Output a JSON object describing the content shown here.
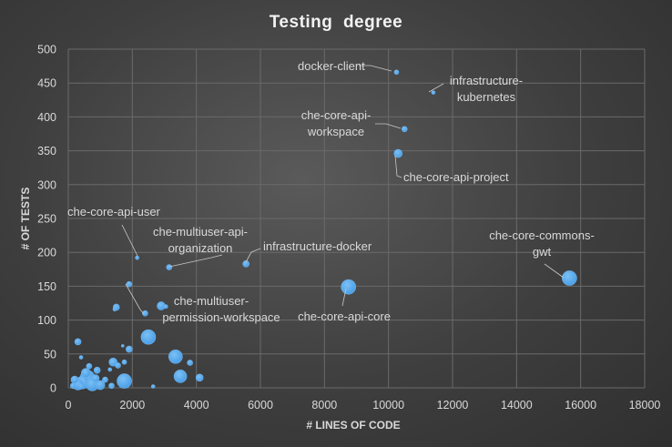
{
  "chart_data": {
    "type": "scatter",
    "title": "Testing  degree",
    "xlabel": "# LINES OF CODE",
    "ylabel": "# OF TESTS",
    "xlim": [
      0,
      18000
    ],
    "ylim": [
      0,
      500
    ],
    "x_ticks": [
      "0",
      "2000",
      "4000",
      "6000",
      "8000",
      "10000",
      "12000",
      "14000",
      "16000",
      "18000"
    ],
    "y_ticks": [
      "0",
      "50",
      "100",
      "150",
      "200",
      "250",
      "300",
      "350",
      "400",
      "450",
      "500"
    ],
    "grid": true,
    "legend": "none",
    "marker_color": "#4a9ee6",
    "points": [
      {
        "x": 10250,
        "y": 466,
        "r": 2.5,
        "label": "docker-client"
      },
      {
        "x": 11400,
        "y": 436,
        "r": 2,
        "label": "infrastructure-\nkubernetes"
      },
      {
        "x": 10500,
        "y": 382,
        "r": 3,
        "label": "che-core-api-\nworkspace"
      },
      {
        "x": 10300,
        "y": 346,
        "r": 4.5,
        "label": "che-core-api-project"
      },
      {
        "x": 2150,
        "y": 192,
        "r": 2,
        "label": "che-core-api-user"
      },
      {
        "x": 3150,
        "y": 178,
        "r": 3,
        "label": "che-multiuser-api-\norganization"
      },
      {
        "x": 5550,
        "y": 183,
        "r": 3.5,
        "label": "infrastructure-docker"
      },
      {
        "x": 15650,
        "y": 162,
        "r": 8,
        "label": "che-core-commons-\ngwt"
      },
      {
        "x": 8750,
        "y": 149,
        "r": 8,
        "label": "che-core-api-core"
      },
      {
        "x": 2400,
        "y": 110,
        "r": 3,
        "label": "che-multiuser-\npermission-workspace"
      },
      {
        "x": 1900,
        "y": 153,
        "r": 3,
        "label": ""
      },
      {
        "x": 2900,
        "y": 121,
        "r": 4.5,
        "label": ""
      },
      {
        "x": 1500,
        "y": 119,
        "r": 3.5,
        "label": ""
      },
      {
        "x": 1450,
        "y": 116,
        "r": 2,
        "label": ""
      },
      {
        "x": 3050,
        "y": 120,
        "r": 2,
        "label": ""
      },
      {
        "x": 2500,
        "y": 75,
        "r": 8,
        "label": ""
      },
      {
        "x": 300,
        "y": 68,
        "r": 3.5,
        "label": ""
      },
      {
        "x": 1900,
        "y": 57,
        "r": 3.5,
        "label": ""
      },
      {
        "x": 1700,
        "y": 62,
        "r": 1.5,
        "label": ""
      },
      {
        "x": 3350,
        "y": 46,
        "r": 7.5,
        "label": ""
      },
      {
        "x": 3800,
        "y": 37,
        "r": 3,
        "label": ""
      },
      {
        "x": 1400,
        "y": 38,
        "r": 4.5,
        "label": ""
      },
      {
        "x": 1550,
        "y": 33,
        "r": 3,
        "label": ""
      },
      {
        "x": 1750,
        "y": 38,
        "r": 2.5,
        "label": ""
      },
      {
        "x": 1300,
        "y": 27,
        "r": 2,
        "label": ""
      },
      {
        "x": 400,
        "y": 45,
        "r": 2,
        "label": ""
      },
      {
        "x": 900,
        "y": 26,
        "r": 3.5,
        "label": ""
      },
      {
        "x": 3500,
        "y": 17,
        "r": 7,
        "label": ""
      },
      {
        "x": 4100,
        "y": 15,
        "r": 4,
        "label": ""
      },
      {
        "x": 1750,
        "y": 10,
        "r": 8,
        "label": ""
      },
      {
        "x": 600,
        "y": 15,
        "r": 8,
        "label": ""
      },
      {
        "x": 450,
        "y": 8,
        "r": 7,
        "label": ""
      },
      {
        "x": 750,
        "y": 5,
        "r": 7,
        "label": ""
      },
      {
        "x": 300,
        "y": 5,
        "r": 6,
        "label": ""
      },
      {
        "x": 1000,
        "y": 4,
        "r": 5,
        "label": ""
      },
      {
        "x": 200,
        "y": 12,
        "r": 4,
        "label": ""
      },
      {
        "x": 550,
        "y": 22,
        "r": 5,
        "label": ""
      },
      {
        "x": 850,
        "y": 14,
        "r": 4,
        "label": ""
      },
      {
        "x": 150,
        "y": 3,
        "r": 3,
        "label": ""
      },
      {
        "x": 400,
        "y": 2,
        "r": 3,
        "label": ""
      },
      {
        "x": 650,
        "y": 32,
        "r": 3,
        "label": ""
      },
      {
        "x": 1350,
        "y": 3,
        "r": 3,
        "label": ""
      },
      {
        "x": 2650,
        "y": 2,
        "r": 2,
        "label": ""
      },
      {
        "x": 1150,
        "y": 12,
        "r": 3,
        "label": ""
      }
    ]
  }
}
